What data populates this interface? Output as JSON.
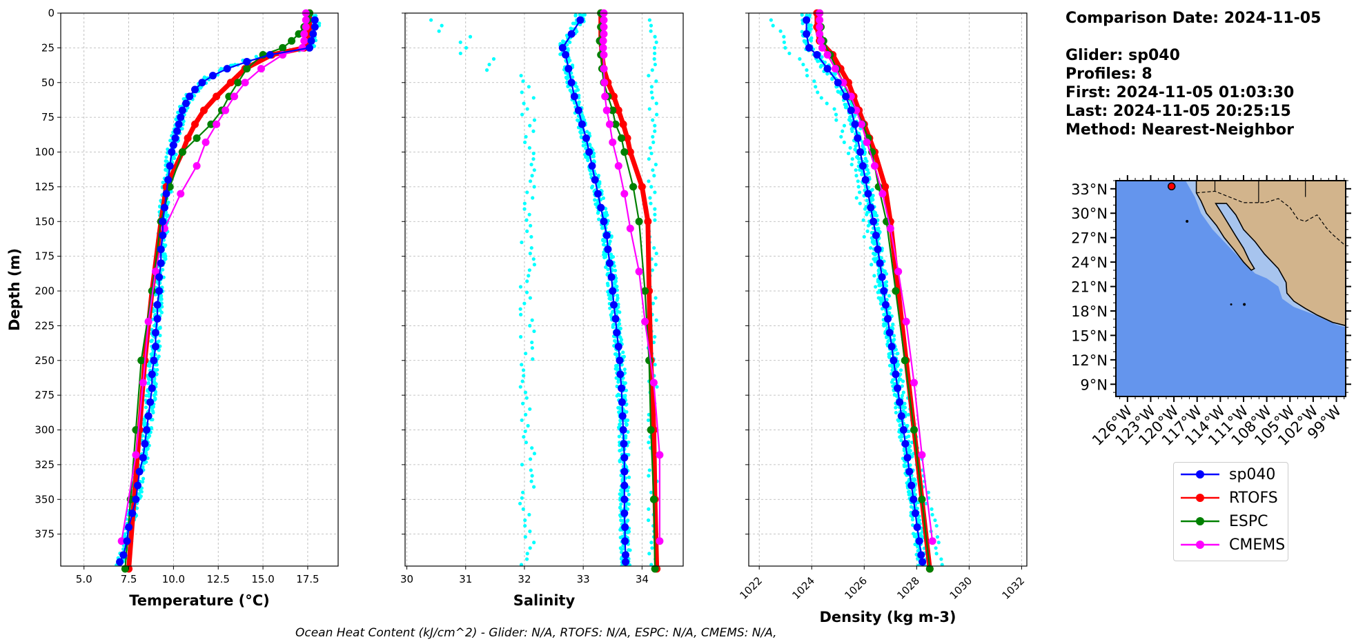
{
  "info": {
    "comparison_date": "Comparison Date: 2024-11-05",
    "glider": "Glider: sp040",
    "profiles": "Profiles: 8",
    "first": "First: 2024-11-05 01:03:30",
    "last": "Last: 2024-11-05 20:25:15",
    "method": "Method: Nearest-Neighbor"
  },
  "footer": "Ocean Heat Content (kJ/cm^2) - Glider: N/A,  RTOFS: N/A,  ESPC: N/A,  CMEMS: N/A,",
  "legend": [
    {
      "name": "sp040",
      "color": "#0000ff"
    },
    {
      "name": "RTOFS",
      "color": "#ff0000"
    },
    {
      "name": "ESPC",
      "color": "#008000"
    },
    {
      "name": "CMEMS",
      "color": "#ff00ff"
    }
  ],
  "colors": {
    "sp040": "#0000ff",
    "RTOFS": "#ff0000",
    "ESPC": "#008000",
    "CMEMS": "#ff00ff",
    "profiles": "#00ffff"
  },
  "map": {
    "lat_labels": [
      "33°N",
      "30°N",
      "27°N",
      "24°N",
      "21°N",
      "18°N",
      "15°N",
      "12°N",
      "9°N"
    ],
    "lon_labels": [
      "126°W",
      "123°W",
      "120°W",
      "117°W",
      "114°W",
      "111°W",
      "108°W",
      "105°W",
      "102°W",
      "99°W"
    ],
    "ocean_color": "#6495ed",
    "shelf_color": "#a7c4ee",
    "land_color": "#d2b48c",
    "glider_marker": {
      "lon": -120.3,
      "lat": 33.3
    }
  },
  "chart_data": [
    {
      "type": "line",
      "xlabel": "Temperature (°C)",
      "ylabel": "Depth (m)",
      "xlim": [
        3.7,
        19.2
      ],
      "ylim": [
        398,
        0
      ],
      "xticks": [
        "5.0",
        "7.5",
        "10.0",
        "12.5",
        "15.0",
        "17.5"
      ],
      "yticks": [
        "0",
        "25",
        "50",
        "75",
        "100",
        "125",
        "150",
        "175",
        "200",
        "225",
        "250",
        "275",
        "300",
        "325",
        "350",
        "375"
      ],
      "grid": true,
      "series": [
        {
          "name": "sp040",
          "depth": [
            5,
            10,
            15,
            20,
            25,
            30,
            35,
            40,
            45,
            50,
            55,
            60,
            65,
            70,
            75,
            80,
            85,
            90,
            95,
            100,
            110,
            120,
            130,
            140,
            150,
            160,
            170,
            180,
            190,
            200,
            210,
            220,
            230,
            240,
            250,
            260,
            270,
            280,
            290,
            300,
            310,
            320,
            330,
            340,
            350,
            360,
            370,
            380,
            390,
            395
          ],
          "values": [
            17.9,
            17.9,
            17.8,
            17.7,
            17.6,
            15.4,
            14.1,
            13.0,
            12.2,
            11.6,
            11.2,
            10.9,
            10.7,
            10.5,
            10.4,
            10.3,
            10.2,
            10.1,
            10.0,
            9.9,
            9.8,
            9.7,
            9.6,
            9.5,
            9.4,
            9.4,
            9.3,
            9.3,
            9.2,
            9.2,
            9.1,
            9.1,
            9.0,
            9.0,
            8.9,
            8.8,
            8.8,
            8.7,
            8.6,
            8.5,
            8.4,
            8.3,
            8.1,
            8.0,
            7.9,
            7.7,
            7.5,
            7.4,
            7.2,
            7.0
          ]
        },
        {
          "name": "RTOFS",
          "depth": [
            0,
            5,
            10,
            15,
            20,
            25,
            30,
            40,
            50,
            60,
            70,
            80,
            90,
            100,
            125,
            150,
            200,
            250,
            300,
            350,
            400
          ],
          "values": [
            17.6,
            17.6,
            17.6,
            17.5,
            17.5,
            17.3,
            15.5,
            14.0,
            13.2,
            12.4,
            11.7,
            11.2,
            10.8,
            10.5,
            9.6,
            9.3,
            8.8,
            8.4,
            8.1,
            7.8,
            7.5
          ]
        },
        {
          "name": "ESPC",
          "depth": [
            0,
            5,
            10,
            15,
            20,
            25,
            30,
            40,
            50,
            60,
            70,
            80,
            90,
            100,
            125,
            150,
            200,
            250,
            300,
            350,
            400
          ],
          "values": [
            17.6,
            17.5,
            17.3,
            17.0,
            16.6,
            16.1,
            15.0,
            14.1,
            13.6,
            13.1,
            12.7,
            12.1,
            11.3,
            10.5,
            9.8,
            9.3,
            8.8,
            8.2,
            7.9,
            7.6,
            7.3
          ]
        },
        {
          "name": "CMEMS",
          "depth": [
            0,
            5,
            10,
            15,
            20,
            25,
            30,
            40,
            50,
            60,
            70,
            80,
            93,
            110,
            130,
            155,
            186,
            222,
            266,
            318,
            380
          ],
          "values": [
            17.4,
            17.4,
            17.4,
            17.3,
            17.3,
            17.2,
            16.1,
            14.9,
            14.0,
            13.4,
            12.9,
            12.4,
            11.8,
            11.3,
            10.4,
            9.5,
            9.0,
            8.6,
            8.3,
            7.9,
            7.1
          ]
        }
      ]
    },
    {
      "type": "line",
      "xlabel": "Salinity",
      "ylabel": "",
      "xlim": [
        29.97,
        34.7
      ],
      "ylim": [
        398,
        0
      ],
      "xticks": [
        "30",
        "31",
        "32",
        "33",
        "34"
      ],
      "yticks": [
        "0",
        "25",
        "50",
        "75",
        "100",
        "125",
        "150",
        "175",
        "200",
        "225",
        "250",
        "275",
        "300",
        "325",
        "350",
        "375"
      ],
      "grid": true,
      "series": [
        {
          "name": "sp040",
          "depth": [
            5,
            15,
            25,
            30,
            40,
            50,
            60,
            70,
            80,
            90,
            100,
            110,
            120,
            130,
            140,
            150,
            160,
            170,
            180,
            190,
            200,
            210,
            220,
            230,
            240,
            250,
            260,
            270,
            280,
            290,
            300,
            310,
            320,
            330,
            340,
            350,
            360,
            370,
            380,
            390,
            395
          ],
          "values": [
            32.95,
            32.8,
            32.65,
            32.7,
            32.75,
            32.8,
            32.85,
            32.92,
            32.98,
            33.05,
            33.1,
            33.15,
            33.2,
            33.25,
            33.3,
            33.35,
            33.4,
            33.42,
            33.45,
            33.48,
            33.5,
            33.52,
            33.55,
            33.57,
            33.6,
            33.62,
            33.63,
            33.65,
            33.66,
            33.67,
            33.68,
            33.69,
            33.7,
            33.7,
            33.7,
            33.7,
            33.7,
            33.71,
            33.71,
            33.72,
            33.72
          ]
        },
        {
          "name": "RTOFS",
          "depth": [
            0,
            10,
            20,
            30,
            40,
            50,
            60,
            70,
            80,
            90,
            100,
            125,
            150,
            200,
            250,
            300,
            350,
            400
          ],
          "values": [
            33.3,
            33.3,
            33.3,
            33.32,
            33.35,
            33.42,
            33.52,
            33.6,
            33.68,
            33.75,
            33.8,
            34.0,
            34.1,
            34.12,
            34.15,
            34.2,
            34.22,
            34.25
          ]
        },
        {
          "name": "ESPC",
          "depth": [
            0,
            10,
            20,
            30,
            40,
            50,
            60,
            70,
            80,
            90,
            100,
            125,
            150,
            200,
            250,
            300,
            350,
            400
          ],
          "values": [
            33.3,
            33.3,
            33.28,
            33.3,
            33.32,
            33.35,
            33.42,
            33.5,
            33.55,
            33.65,
            33.7,
            33.85,
            33.95,
            34.05,
            34.12,
            34.15,
            34.2,
            34.22
          ]
        },
        {
          "name": "CMEMS",
          "depth": [
            0,
            5,
            10,
            15,
            20,
            25,
            30,
            40,
            50,
            60,
            70,
            80,
            93,
            110,
            130,
            155,
            186,
            222,
            266,
            318,
            380
          ],
          "values": [
            33.35,
            33.35,
            33.35,
            33.35,
            33.34,
            33.34,
            33.35,
            33.35,
            33.36,
            33.37,
            33.4,
            33.45,
            33.5,
            33.6,
            33.7,
            33.8,
            33.95,
            34.05,
            34.2,
            34.3,
            34.3
          ]
        }
      ]
    },
    {
      "type": "line",
      "xlabel": "Density (kg m-3)",
      "ylabel": "",
      "xlim": [
        1021.6,
        1032.2
      ],
      "ylim": [
        398,
        0
      ],
      "xticks": [
        "1022",
        "1024",
        "1026",
        "1028",
        "1030",
        "1032"
      ],
      "yticks": [
        "0",
        "25",
        "50",
        "75",
        "100",
        "125",
        "150",
        "175",
        "200",
        "225",
        "250",
        "275",
        "300",
        "325",
        "350",
        "375"
      ],
      "grid": true,
      "series": [
        {
          "name": "sp040",
          "depth": [
            5,
            15,
            25,
            30,
            40,
            50,
            60,
            70,
            80,
            90,
            100,
            110,
            120,
            130,
            140,
            150,
            160,
            170,
            180,
            190,
            200,
            210,
            220,
            230,
            240,
            250,
            260,
            270,
            280,
            290,
            300,
            310,
            320,
            330,
            340,
            350,
            360,
            370,
            380,
            390,
            395
          ],
          "values": [
            1023.8,
            1023.8,
            1023.9,
            1024.2,
            1024.6,
            1025.0,
            1025.3,
            1025.5,
            1025.65,
            1025.75,
            1025.85,
            1025.95,
            1026.05,
            1026.15,
            1026.25,
            1026.35,
            1026.45,
            1026.52,
            1026.6,
            1026.68,
            1026.75,
            1026.82,
            1026.9,
            1026.97,
            1027.05,
            1027.12,
            1027.2,
            1027.27,
            1027.35,
            1027.42,
            1027.5,
            1027.57,
            1027.65,
            1027.72,
            1027.8,
            1027.88,
            1027.95,
            1028.02,
            1028.1,
            1028.17,
            1028.22
          ]
        },
        {
          "name": "RTOFS",
          "depth": [
            0,
            10,
            20,
            30,
            40,
            50,
            60,
            70,
            80,
            90,
            100,
            125,
            150,
            200,
            250,
            300,
            350,
            400
          ],
          "values": [
            1024.2,
            1024.2,
            1024.3,
            1024.8,
            1025.1,
            1025.4,
            1025.6,
            1025.8,
            1026.0,
            1026.2,
            1026.4,
            1026.8,
            1027.0,
            1027.3,
            1027.6,
            1027.9,
            1028.2,
            1028.5
          ]
        },
        {
          "name": "ESPC",
          "depth": [
            0,
            10,
            20,
            30,
            40,
            50,
            60,
            70,
            80,
            90,
            100,
            125,
            150,
            200,
            250,
            300,
            350,
            400
          ],
          "values": [
            1024.3,
            1024.35,
            1024.45,
            1024.7,
            1024.95,
            1025.2,
            1025.45,
            1025.7,
            1025.95,
            1026.15,
            1026.3,
            1026.55,
            1026.85,
            1027.2,
            1027.55,
            1027.9,
            1028.2,
            1028.5
          ]
        },
        {
          "name": "CMEMS",
          "depth": [
            0,
            5,
            10,
            15,
            20,
            25,
            30,
            40,
            50,
            60,
            70,
            80,
            93,
            110,
            130,
            155,
            186,
            222,
            266,
            318,
            380
          ],
          "values": [
            1024.3,
            1024.3,
            1024.3,
            1024.3,
            1024.35,
            1024.4,
            1024.6,
            1024.9,
            1025.2,
            1025.5,
            1025.7,
            1025.9,
            1026.1,
            1026.4,
            1026.7,
            1027.0,
            1027.3,
            1027.6,
            1027.9,
            1028.2,
            1028.6
          ]
        }
      ]
    }
  ]
}
